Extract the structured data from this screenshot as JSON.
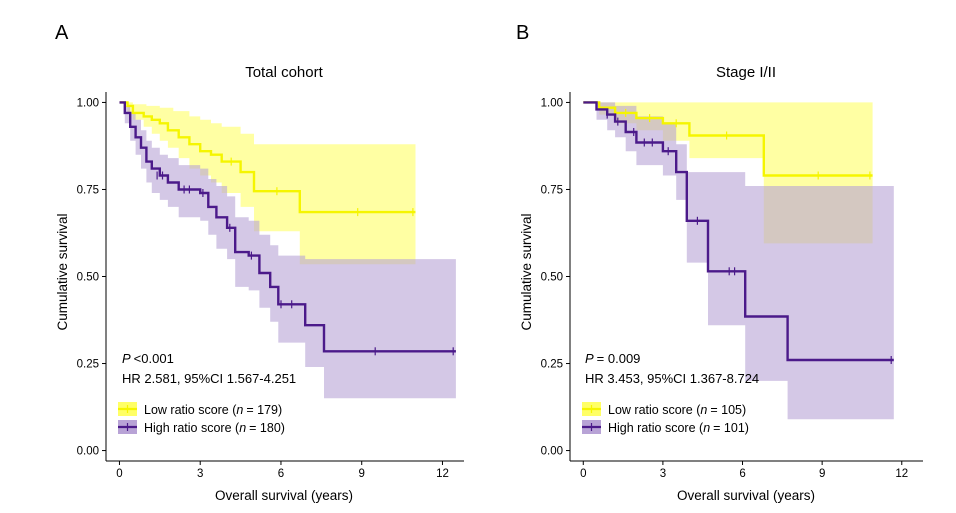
{
  "chart_data": [
    {
      "panel": "A",
      "type": "line",
      "title": "Total cohort",
      "xlabel": "Overall survival (years)",
      "ylabel": "Cumulative survival",
      "xlim": [
        0,
        12.5
      ],
      "ylim": [
        0,
        1
      ],
      "xticks": [
        0,
        3,
        6,
        9,
        12
      ],
      "yticks": [
        0.0,
        0.25,
        0.5,
        0.75,
        1.0
      ],
      "ytick_labels": [
        "0.00",
        "0.25",
        "0.50",
        "0.75",
        "1.00"
      ],
      "grid": false,
      "legend_position": "bottom-left",
      "p_label": "P",
      "p_value": "<0.001",
      "hr_text": "HR 2.581, 95%CI 1.567-4.251",
      "series": [
        {
          "name": "Low ratio score",
          "n_label": "n",
          "n_value": "= 179)",
          "color": "#f5f500",
          "band_color": "#ffff66",
          "steps": [
            [
              0,
              1.0
            ],
            [
              0.3,
              0.99
            ],
            [
              0.5,
              0.97
            ],
            [
              0.9,
              0.96
            ],
            [
              1.2,
              0.95
            ],
            [
              1.5,
              0.94
            ],
            [
              1.8,
              0.92
            ],
            [
              2.2,
              0.9
            ],
            [
              2.6,
              0.88
            ],
            [
              3.0,
              0.86
            ],
            [
              3.4,
              0.85
            ],
            [
              3.8,
              0.83
            ],
            [
              4.5,
              0.8
            ],
            [
              5.0,
              0.745
            ],
            [
              6.7,
              0.685
            ],
            [
              11.0,
              0.685
            ]
          ],
          "lower": [
            [
              0,
              1.0
            ],
            [
              0.3,
              0.97
            ],
            [
              0.5,
              0.95
            ],
            [
              0.9,
              0.93
            ],
            [
              1.2,
              0.91
            ],
            [
              1.5,
              0.89
            ],
            [
              1.8,
              0.87
            ],
            [
              2.2,
              0.84
            ],
            [
              2.6,
              0.81
            ],
            [
              3.0,
              0.79
            ],
            [
              3.4,
              0.77
            ],
            [
              3.8,
              0.74
            ],
            [
              4.5,
              0.7
            ],
            [
              5.0,
              0.63
            ],
            [
              6.7,
              0.535
            ],
            [
              11.0,
              0.535
            ]
          ],
          "upper": [
            [
              0,
              1.0
            ],
            [
              0.5,
              0.995
            ],
            [
              1.0,
              0.99
            ],
            [
              1.5,
              0.985
            ],
            [
              2.0,
              0.975
            ],
            [
              2.6,
              0.96
            ],
            [
              3.0,
              0.95
            ],
            [
              3.4,
              0.94
            ],
            [
              3.8,
              0.93
            ],
            [
              4.5,
              0.91
            ],
            [
              5.0,
              0.88
            ],
            [
              11.0,
              0.88
            ]
          ]
        },
        {
          "name": "High ratio score",
          "n_label": "n",
          "n_value": "= 180)",
          "color": "#4b1a8a",
          "band_color": "#b8a3d6",
          "steps": [
            [
              0,
              1.0
            ],
            [
              0.2,
              0.97
            ],
            [
              0.4,
              0.93
            ],
            [
              0.6,
              0.9
            ],
            [
              0.8,
              0.87
            ],
            [
              1.0,
              0.83
            ],
            [
              1.2,
              0.81
            ],
            [
              1.5,
              0.79
            ],
            [
              1.8,
              0.77
            ],
            [
              2.2,
              0.75
            ],
            [
              3.0,
              0.74
            ],
            [
              3.3,
              0.7
            ],
            [
              3.6,
              0.67
            ],
            [
              4.0,
              0.64
            ],
            [
              4.3,
              0.57
            ],
            [
              4.8,
              0.56
            ],
            [
              5.2,
              0.51
            ],
            [
              5.6,
              0.47
            ],
            [
              5.9,
              0.42
            ],
            [
              6.9,
              0.36
            ],
            [
              7.6,
              0.285
            ],
            [
              12.5,
              0.285
            ]
          ],
          "lower": [
            [
              0,
              1.0
            ],
            [
              0.2,
              0.94
            ],
            [
              0.4,
              0.89
            ],
            [
              0.6,
              0.85
            ],
            [
              0.8,
              0.81
            ],
            [
              1.0,
              0.77
            ],
            [
              1.2,
              0.74
            ],
            [
              1.5,
              0.72
            ],
            [
              1.8,
              0.7
            ],
            [
              2.2,
              0.67
            ],
            [
              3.0,
              0.66
            ],
            [
              3.3,
              0.62
            ],
            [
              3.6,
              0.58
            ],
            [
              4.0,
              0.55
            ],
            [
              4.3,
              0.47
            ],
            [
              4.8,
              0.46
            ],
            [
              5.2,
              0.41
            ],
            [
              5.6,
              0.37
            ],
            [
              5.9,
              0.31
            ],
            [
              6.9,
              0.24
            ],
            [
              7.6,
              0.15
            ],
            [
              12.5,
              0.15
            ]
          ],
          "upper": [
            [
              0,
              1.0
            ],
            [
              0.2,
              0.99
            ],
            [
              0.4,
              0.97
            ],
            [
              0.6,
              0.95
            ],
            [
              0.8,
              0.92
            ],
            [
              1.0,
              0.89
            ],
            [
              1.2,
              0.87
            ],
            [
              1.5,
              0.85
            ],
            [
              1.8,
              0.84
            ],
            [
              2.2,
              0.82
            ],
            [
              3.0,
              0.81
            ],
            [
              3.3,
              0.78
            ],
            [
              3.6,
              0.76
            ],
            [
              4.0,
              0.73
            ],
            [
              4.3,
              0.67
            ],
            [
              4.8,
              0.66
            ],
            [
              5.2,
              0.62
            ],
            [
              5.6,
              0.59
            ],
            [
              5.9,
              0.56
            ],
            [
              6.9,
              0.55
            ],
            [
              12.5,
              0.55
            ]
          ],
          "censor": [
            [
              1.4,
              0.79
            ],
            [
              1.6,
              0.79
            ],
            [
              2.4,
              0.75
            ],
            [
              2.6,
              0.75
            ],
            [
              3.1,
              0.74
            ],
            [
              4.1,
              0.64
            ],
            [
              4.9,
              0.56
            ],
            [
              6.0,
              0.42
            ],
            [
              6.4,
              0.42
            ],
            [
              9.5,
              0.285
            ],
            [
              12.4,
              0.285
            ]
          ]
        }
      ]
    },
    {
      "panel": "B",
      "type": "line",
      "title": "Stage I/II",
      "xlabel": "Overall survival (years)",
      "ylabel": "Cumulative survival",
      "xlim": [
        0,
        12.5
      ],
      "ylim": [
        0,
        1
      ],
      "xticks": [
        0,
        3,
        6,
        9,
        12
      ],
      "yticks": [
        0.0,
        0.25,
        0.5,
        0.75,
        1.0
      ],
      "ytick_labels": [
        "0.00",
        "0.25",
        "0.50",
        "0.75",
        "1.00"
      ],
      "grid": false,
      "legend_position": "bottom-left",
      "p_label": "P",
      "p_value": "= 0.009",
      "hr_text": "HR 3.453, 95%CI 1.367-8.724",
      "series": [
        {
          "name": "Low ratio score",
          "n_label": "n",
          "n_value": "= 105)",
          "color": "#f5f500",
          "band_color": "#ffff66",
          "steps": [
            [
              0,
              1.0
            ],
            [
              0.6,
              0.985
            ],
            [
              1.2,
              0.97
            ],
            [
              2.0,
              0.955
            ],
            [
              3.0,
              0.94
            ],
            [
              4.0,
              0.905
            ],
            [
              6.8,
              0.79
            ],
            [
              10.9,
              0.79
            ]
          ],
          "lower": [
            [
              0,
              1.0
            ],
            [
              0.6,
              0.965
            ],
            [
              1.2,
              0.94
            ],
            [
              2.0,
              0.92
            ],
            [
              3.0,
              0.89
            ],
            [
              4.0,
              0.84
            ],
            [
              6.8,
              0.595
            ],
            [
              10.9,
              0.595
            ]
          ],
          "upper": [
            [
              0,
              1.0
            ],
            [
              10.9,
              1.0
            ]
          ]
        },
        {
          "name": "High ratio score",
          "n_label": "n",
          "n_value": "= 101)",
          "color": "#4b1a8a",
          "band_color": "#b8a3d6",
          "steps": [
            [
              0,
              1.0
            ],
            [
              0.5,
              0.98
            ],
            [
              0.9,
              0.965
            ],
            [
              1.2,
              0.945
            ],
            [
              1.6,
              0.915
            ],
            [
              2.0,
              0.885
            ],
            [
              3.0,
              0.86
            ],
            [
              3.5,
              0.8
            ],
            [
              3.9,
              0.66
            ],
            [
              4.7,
              0.515
            ],
            [
              6.1,
              0.385
            ],
            [
              7.7,
              0.26
            ],
            [
              11.7,
              0.26
            ]
          ],
          "lower": [
            [
              0,
              1.0
            ],
            [
              0.5,
              0.95
            ],
            [
              0.9,
              0.92
            ],
            [
              1.2,
              0.9
            ],
            [
              1.6,
              0.86
            ],
            [
              2.0,
              0.82
            ],
            [
              3.0,
              0.79
            ],
            [
              3.5,
              0.72
            ],
            [
              3.9,
              0.54
            ],
            [
              4.7,
              0.36
            ],
            [
              6.1,
              0.2
            ],
            [
              7.7,
              0.09
            ],
            [
              11.7,
              0.09
            ]
          ],
          "upper": [
            [
              0,
              1.0
            ],
            [
              1.2,
              0.99
            ],
            [
              2.0,
              0.96
            ],
            [
              3.0,
              0.94
            ],
            [
              3.5,
              0.88
            ],
            [
              3.9,
              0.8
            ],
            [
              4.7,
              0.8
            ],
            [
              6.1,
              0.76
            ],
            [
              11.7,
              0.76
            ]
          ],
          "censor": [
            [
              0.9,
              0.965
            ],
            [
              1.3,
              0.945
            ],
            [
              1.9,
              0.915
            ],
            [
              2.3,
              0.885
            ],
            [
              2.6,
              0.885
            ],
            [
              3.2,
              0.86
            ],
            [
              4.3,
              0.66
            ],
            [
              5.5,
              0.515
            ],
            [
              5.7,
              0.515
            ],
            [
              11.6,
              0.26
            ]
          ]
        }
      ]
    }
  ]
}
